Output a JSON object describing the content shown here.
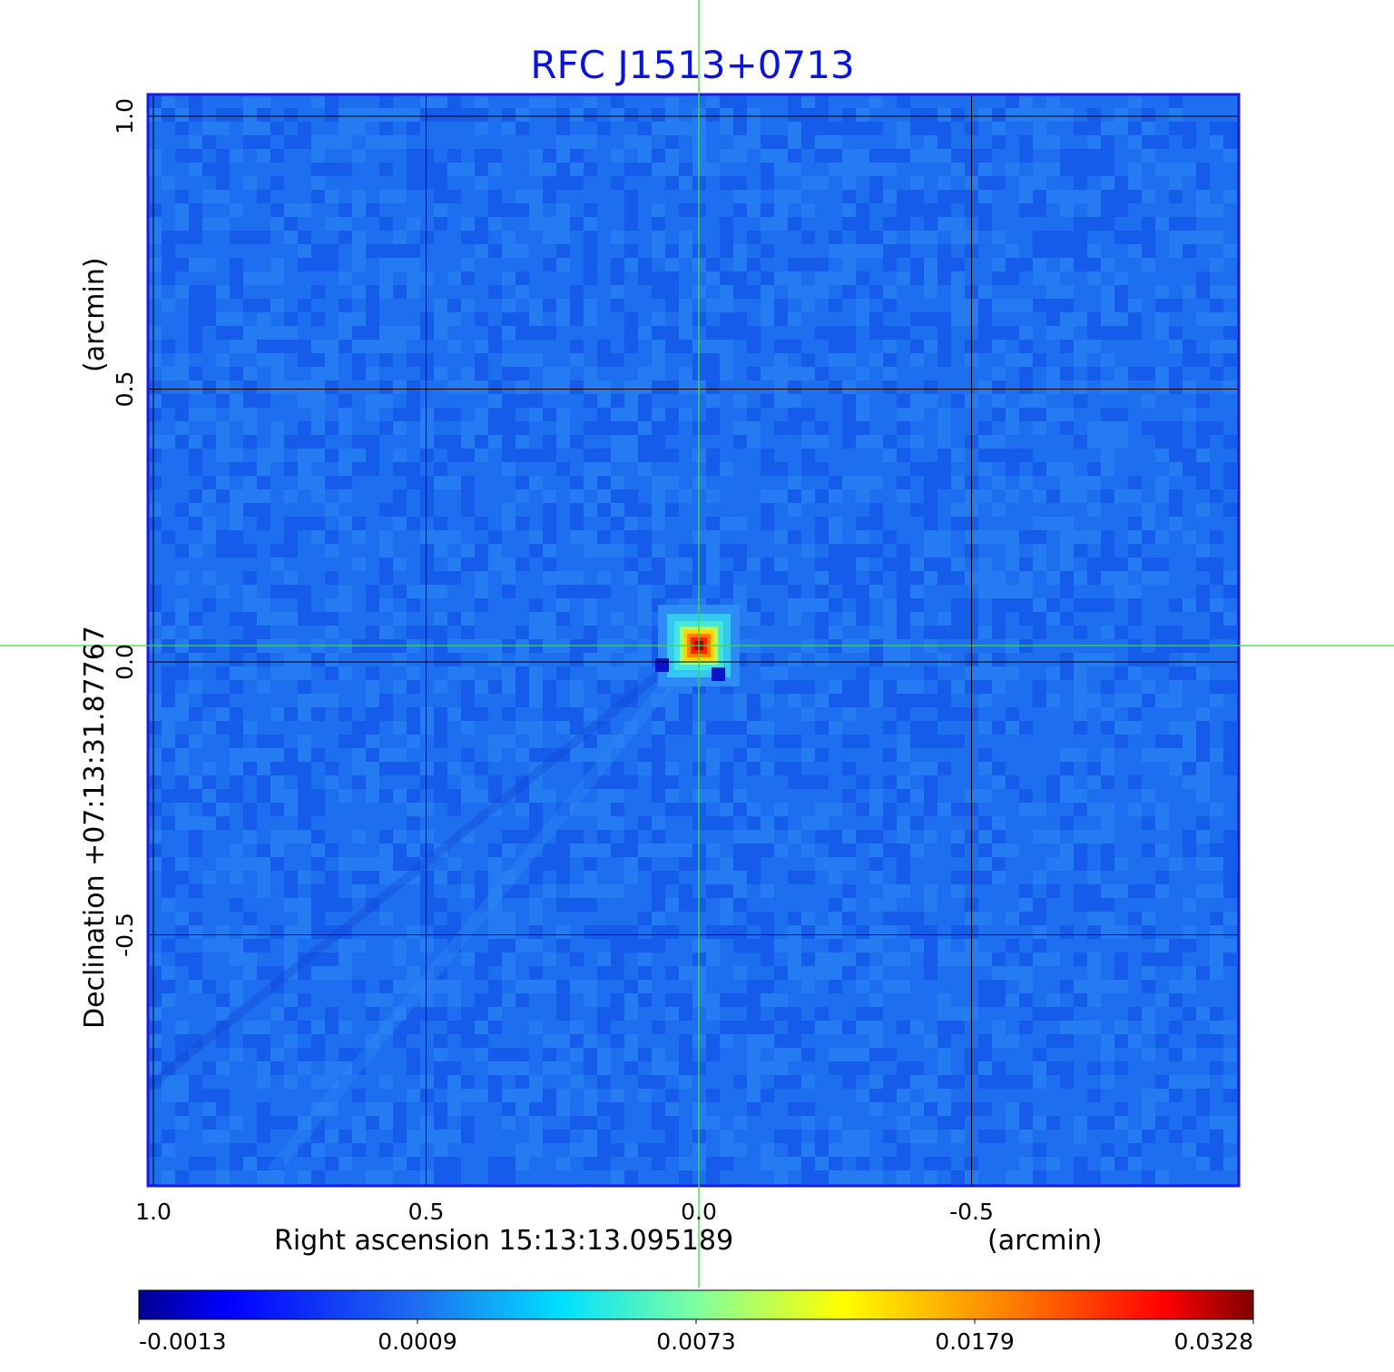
{
  "chart_data": {
    "type": "heatmap",
    "title": "RFC J1513+0713",
    "xlabel": "Right ascension  15:13:13.095189",
    "xunit": "(arcmin)",
    "ylabel": "Declination  +07:13:31.87767",
    "yunit": "(arcmin)",
    "xlim": [
      1.01,
      -0.99
    ],
    "ylim": [
      -0.96,
      1.04
    ],
    "x_ticks": [
      1.0,
      0.5,
      0.0,
      -0.5
    ],
    "x_tick_labels": [
      "1.0",
      "0.5",
      "0.0",
      "-0.5"
    ],
    "y_ticks": [
      1.0,
      0.5,
      0.0,
      -0.5
    ],
    "y_tick_labels": [
      "1.0",
      "0.5",
      "0.0",
      "-0.5"
    ],
    "grid": true,
    "crosshair": {
      "x": 0.0,
      "y": 0.03
    },
    "peak": {
      "x": 0.0,
      "y": 0.03,
      "value": 0.0328
    },
    "background_level": -0.0004,
    "colorbar": {
      "ticks": [
        -0.0013,
        0.0009,
        0.0073,
        0.0179,
        0.0328
      ],
      "tick_labels": [
        "-0.0013",
        "0.0009",
        "0.0073",
        "0.0179",
        "0.0328"
      ],
      "colormap": "jet",
      "scale": "nonlinear"
    },
    "colors": {
      "title": "#0a14d8",
      "frame": "#1a1ae6",
      "crosshair": "#3bdc3b",
      "grid": "#000000",
      "background_field": "#1e6ef0"
    }
  }
}
